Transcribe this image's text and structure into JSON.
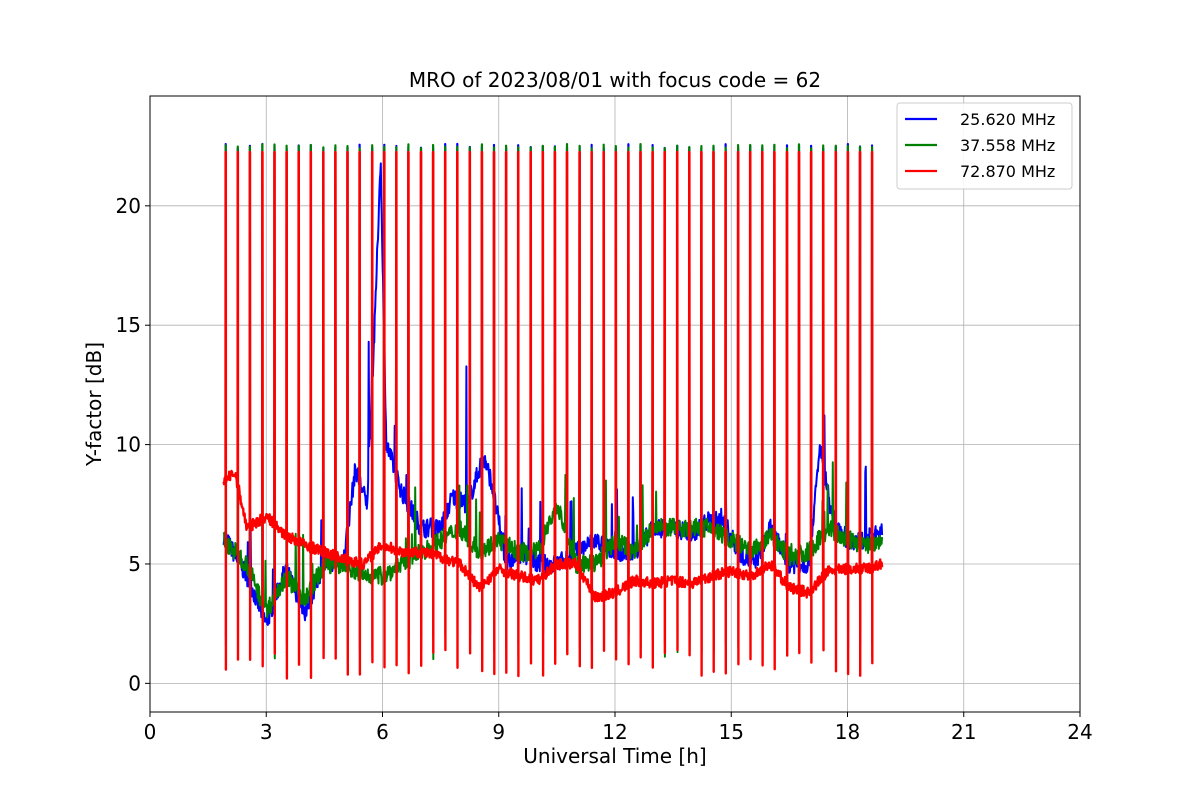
{
  "chart_data": {
    "type": "line",
    "title": "MRO of 2023/08/01 with focus code = 62",
    "xlabel": "Universal Time [h]",
    "ylabel": "Y-factor [dB]",
    "xlim": [
      0,
      24
    ],
    "ylim": [
      -1.2,
      24.6
    ],
    "xticks": [
      0,
      3,
      6,
      9,
      12,
      15,
      18,
      21,
      24
    ],
    "yticks": [
      0,
      5,
      10,
      15,
      20
    ],
    "grid": true,
    "legend_position": "top-right",
    "pulse_spike_value_db": 22.5,
    "series": [
      {
        "name": "25.620 MHz",
        "color": "#0000ff",
        "x": [
          1.9,
          2.5,
          3.0,
          3.5,
          4.0,
          4.5,
          5.0,
          5.3,
          5.6,
          5.8,
          5.95,
          6.1,
          6.5,
          7.0,
          7.5,
          7.8,
          8.2,
          8.6,
          8.8,
          9.2,
          9.6,
          10.0,
          10.5,
          11.0,
          11.5,
          12.0,
          12.5,
          13.0,
          13.5,
          14.0,
          14.4,
          14.8,
          15.2,
          15.6,
          16.0,
          16.5,
          17.0,
          17.3,
          17.6,
          18.0,
          18.4,
          18.9
        ],
        "values": [
          6.2,
          4.5,
          2.5,
          4.8,
          3.0,
          5.0,
          5.2,
          9.0,
          7.5,
          15.0,
          22.0,
          10.0,
          8.0,
          6.5,
          6.5,
          7.8,
          7.5,
          9.5,
          8.5,
          5.0,
          5.5,
          5.0,
          5.0,
          5.5,
          6.0,
          5.5,
          5.5,
          6.5,
          6.5,
          6.3,
          6.8,
          6.8,
          5.5,
          5.0,
          6.5,
          5.0,
          5.0,
          10.0,
          7.0,
          6.0,
          6.0,
          6.3
        ]
      },
      {
        "name": "37.558 MHz",
        "color": "#008000",
        "x": [
          1.9,
          2.5,
          3.0,
          3.5,
          4.0,
          4.5,
          5.0,
          5.5,
          6.0,
          6.5,
          7.0,
          7.5,
          8.0,
          8.5,
          9.0,
          9.5,
          10.0,
          10.5,
          11.0,
          11.5,
          12.0,
          12.5,
          13.0,
          13.5,
          14.0,
          14.5,
          15.0,
          15.5,
          16.0,
          16.5,
          17.0,
          17.5,
          18.0,
          18.5,
          18.9
        ],
        "values": [
          6.0,
          5.0,
          3.0,
          4.5,
          3.5,
          5.0,
          5.0,
          4.5,
          4.5,
          5.0,
          5.5,
          6.0,
          6.5,
          5.5,
          6.0,
          5.5,
          5.5,
          7.5,
          5.0,
          5.0,
          6.0,
          5.5,
          6.5,
          6.5,
          6.5,
          6.5,
          6.0,
          5.5,
          6.2,
          5.3,
          5.5,
          6.5,
          6.0,
          5.8,
          6.0
        ]
      },
      {
        "name": "72.870 MHz",
        "color": "#ff0000",
        "x": [
          1.9,
          2.2,
          2.5,
          3.0,
          3.5,
          4.0,
          4.5,
          5.0,
          5.5,
          6.0,
          6.5,
          7.0,
          7.5,
          8.0,
          8.5,
          9.0,
          9.5,
          10.0,
          10.5,
          11.0,
          11.5,
          12.0,
          12.5,
          13.0,
          13.5,
          14.0,
          14.5,
          15.0,
          15.5,
          16.0,
          16.5,
          17.0,
          17.5,
          18.0,
          18.5,
          18.9
        ],
        "values": [
          8.5,
          8.8,
          6.5,
          7.0,
          6.2,
          5.8,
          5.5,
          5.2,
          5.0,
          5.8,
          5.5,
          5.5,
          5.3,
          5.0,
          4.0,
          4.8,
          4.5,
          4.3,
          5.0,
          5.0,
          3.6,
          3.8,
          4.3,
          4.2,
          4.3,
          4.2,
          4.5,
          4.7,
          4.5,
          5.0,
          4.0,
          3.8,
          4.7,
          4.8,
          4.8,
          5.0
        ]
      }
    ]
  }
}
